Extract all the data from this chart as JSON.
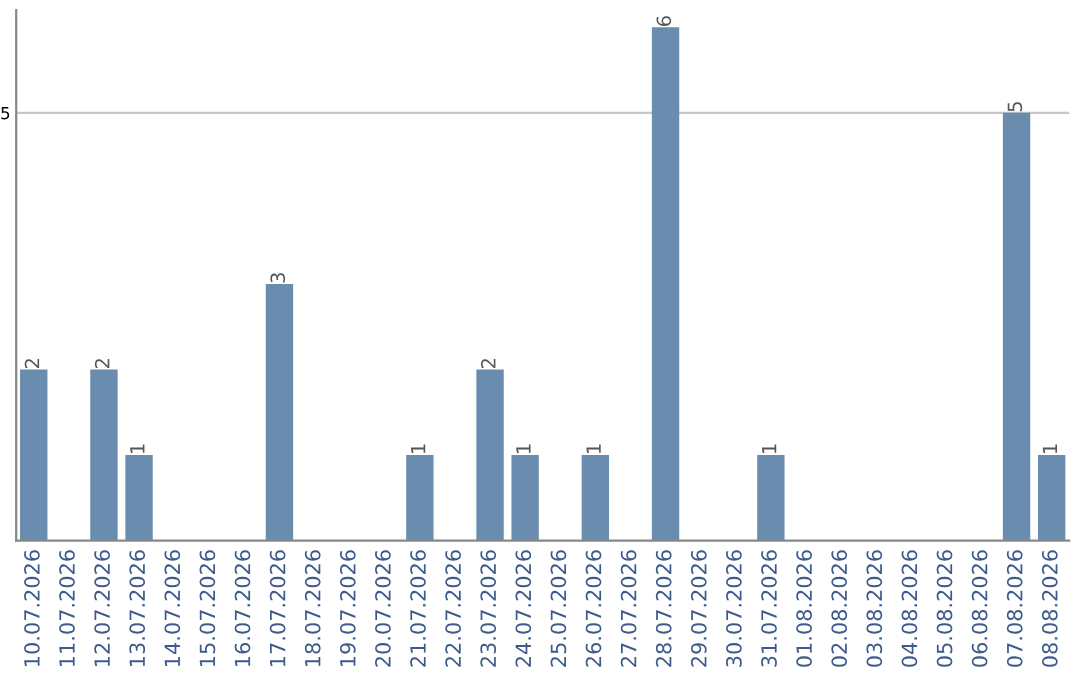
{
  "chart_data": {
    "type": "bar",
    "categories": [
      "10.07.2026",
      "11.07.2026",
      "12.07.2026",
      "13.07.2026",
      "14.07.2026",
      "15.07.2026",
      "16.07.2026",
      "17.07.2026",
      "18.07.2026",
      "19.07.2026",
      "20.07.2026",
      "21.07.2026",
      "22.07.2026",
      "23.07.2026",
      "24.07.2026",
      "25.07.2026",
      "26.07.2026",
      "27.07.2026",
      "28.07.2026",
      "29.07.2026",
      "30.07.2026",
      "31.07.2026",
      "01.08.2026",
      "02.08.2026",
      "03.08.2026",
      "04.08.2026",
      "05.08.2026",
      "06.08.2026",
      "07.08.2026",
      "08.08.2026"
    ],
    "values": [
      2,
      0,
      2,
      1,
      0,
      0,
      0,
      3,
      0,
      0,
      0,
      1,
      0,
      2,
      1,
      0,
      1,
      0,
      6,
      0,
      0,
      1,
      0,
      0,
      0,
      0,
      0,
      0,
      5,
      1
    ],
    "value_labels": [
      "2",
      null,
      "2",
      "1",
      null,
      null,
      null,
      "3",
      null,
      null,
      null,
      "1",
      null,
      "2",
      "1",
      null,
      "1",
      null,
      "6",
      null,
      null,
      "1",
      null,
      null,
      null,
      null,
      null,
      null,
      "5",
      "1"
    ],
    "color": "#6a8caf",
    "ylim": [
      0,
      6.2
    ],
    "yticks": [
      5
    ],
    "grid": "y"
  }
}
